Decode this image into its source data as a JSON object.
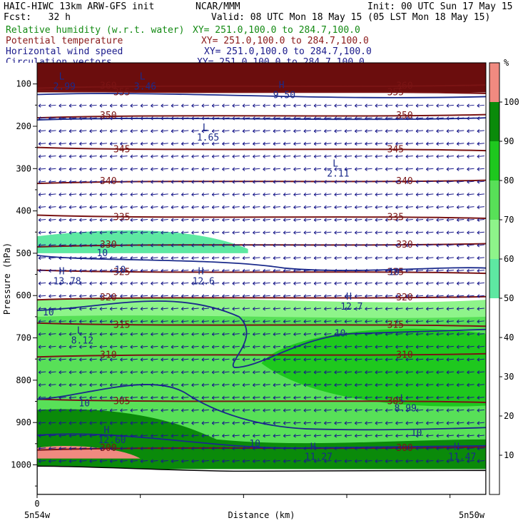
{
  "header": {
    "title": "HAIC-HIWC 13km ARW-GFS init",
    "center": "NCAR/MMM",
    "init": "Init: 00 UTC Sun 17 May 15",
    "fcst": "Fcst:   32 h",
    "valid": "Valid: 08 UTC Mon 18 May 15 (05 LST Mon 18 May 15)",
    "fields": [
      {
        "name": "Relative humidity (w.r.t. water)",
        "xy": "XY= 251.0,100.0 to 284.7,100.0",
        "color": "#138a13"
      },
      {
        "name": "Potential temperature",
        "xy": "XY= 251.0,100.0 to 284.7,100.0",
        "color": "#8b1a1a"
      },
      {
        "name": "Horizontal wind speed",
        "xy": "XY= 251.0,100.0 to 284.7,100.0",
        "color": "#1a1a8b"
      },
      {
        "name": "Circulation vectors",
        "xy": "XY= 251.0,100.0 to 284.7,100.0",
        "color": "#1a1a8b"
      }
    ]
  },
  "chart_data": {
    "type": "heatmap",
    "ylabel": "Pressure (hPa)",
    "xlabel": "Distance (km)",
    "x_tick_zero": "0",
    "x_endpoints": [
      "5n54w",
      "5n50w"
    ],
    "pressure_ticks": [
      100,
      200,
      300,
      400,
      500,
      600,
      700,
      800,
      900,
      1000
    ],
    "ylim": [
      1070,
      50
    ],
    "colorbar": {
      "unit": "%",
      "ticks": [
        10,
        20,
        30,
        40,
        50,
        60,
        70,
        80,
        90,
        100
      ],
      "bins": [
        {
          "from": 0,
          "to": 50,
          "color": "#ffffff"
        },
        {
          "from": 50,
          "to": 60,
          "color": "#5ee8a2"
        },
        {
          "from": 60,
          "to": 70,
          "color": "#8ef48a"
        },
        {
          "from": 70,
          "to": 80,
          "color": "#58e058"
        },
        {
          "from": 80,
          "to": 90,
          "color": "#1ec81e"
        },
        {
          "from": 90,
          "to": 100,
          "color": "#0a8a0a"
        },
        {
          "from": 100,
          "to": 110,
          "color": "#f08a80"
        }
      ]
    },
    "rh_layers": [
      {
        "top_hpa": 460,
        "bottom_hpa": 500,
        "class": "50-60",
        "extent": "left half",
        "color": "#5ee8a2"
      },
      {
        "top_hpa": 610,
        "bottom_hpa": 650,
        "class": "60-70",
        "extent": "full width",
        "color": "#8ef48a"
      },
      {
        "top_hpa": 650,
        "bottom_hpa": 1000,
        "class": "70-90",
        "extent": "full width",
        "color": "#58e058"
      },
      {
        "top_hpa": 690,
        "bottom_hpa": 860,
        "class": "80-90",
        "extent": "right half",
        "color": "#1ec81e"
      },
      {
        "top_hpa": 940,
        "bottom_hpa": 1010,
        "class": "90-100",
        "extent": "full width",
        "color": "#0a8a0a"
      },
      {
        "top_hpa": 80,
        "bottom_hpa": 120,
        "class": "90-100",
        "extent": "full width",
        "color": "#6b0d0d"
      },
      {
        "top_hpa": 960,
        "bottom_hpa": 985,
        "class": ">100",
        "extent": "far left",
        "color": "#f08a80"
      }
    ],
    "theta_contours": [
      {
        "value": 300,
        "p_hpa": 960
      },
      {
        "value": 305,
        "p_hpa": 850
      },
      {
        "value": 310,
        "p_hpa": 740
      },
      {
        "value": 315,
        "p_hpa": 670
      },
      {
        "value": 320,
        "p_hpa": 605
      },
      {
        "value": 325,
        "p_hpa": 545
      },
      {
        "value": 330,
        "p_hpa": 480
      },
      {
        "value": 335,
        "p_hpa": 415
      },
      {
        "value": 340,
        "p_hpa": 330
      },
      {
        "value": 345,
        "p_hpa": 255
      },
      {
        "value": 350,
        "p_hpa": 175
      },
      {
        "value": 355,
        "p_hpa": 120
      },
      {
        "value": 360,
        "p_hpa": 105
      }
    ],
    "wind_contour_labels": [
      "10",
      "10",
      "10",
      "10",
      "10",
      "10",
      "10",
      "10"
    ],
    "extrema": [
      {
        "type": "L",
        "value": "2.99"
      },
      {
        "type": "L",
        "value": "3.46"
      },
      {
        "type": "H",
        "value": "9.50"
      },
      {
        "type": "L",
        "value": "1.65"
      },
      {
        "type": "L",
        "value": "2.11"
      },
      {
        "type": "H",
        "value": "13.78"
      },
      {
        "type": "H",
        "value": "12.6"
      },
      {
        "type": "H",
        "value": "12.7"
      },
      {
        "type": "L",
        "value": "8.12"
      },
      {
        "type": "L",
        "value": "8.99"
      },
      {
        "type": "H",
        "value": "12.60"
      },
      {
        "type": "H",
        "value": "11.27"
      },
      {
        "type": "H",
        "value": "11.47"
      }
    ]
  }
}
